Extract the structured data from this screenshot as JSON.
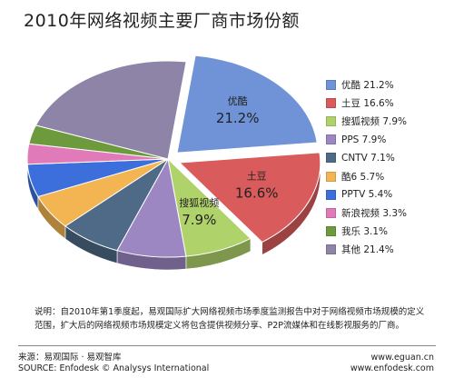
{
  "chart_data": {
    "type": "pie",
    "title": "2010年网络视频主要厂商市场份额",
    "unit": "%",
    "categories": [
      "优酷",
      "土豆",
      "搜狐视频",
      "PPS",
      "CNTV",
      "酷6",
      "PPTV",
      "新浪视频",
      "我乐",
      "其他"
    ],
    "values": [
      21.2,
      16.6,
      7.9,
      7.9,
      7.1,
      5.7,
      5.4,
      3.3,
      3.1,
      21.4
    ],
    "legend_labels": [
      "优酷 21.2%",
      "土豆 16.6%",
      "搜狐视频 7.9%",
      "PPS 7.9%",
      "CNTV 7.1%",
      "酷6 5.7%",
      "PPTV 5.4%",
      "新浪视频 3.3%",
      "我乐 3.1%",
      "其他 21.4%"
    ],
    "colors": [
      "#6f93d6",
      "#d95b5b",
      "#b0d26b",
      "#9c87c2",
      "#4e6a86",
      "#f2b552",
      "#3d6fdc",
      "#e07ab8",
      "#6d9a3c",
      "#8e84a8"
    ],
    "annotations": [
      {
        "name": "优酷",
        "value": "21.2%"
      },
      {
        "name": "土豆",
        "value": "16.6%"
      },
      {
        "name": "搜狐视频",
        "value": "7.9%"
      }
    ],
    "legend_position": "right"
  },
  "note": "说明：自2010年第1季度起，易观国际扩大网络视频市场季度监测报告中对于网络视频市场规模的定义范围，扩大后的网络视频市场规模定义将包含提供视频分享、P2P流媒体和在线影视服务的厂商。",
  "source_cn": "来源：易观国际 · 易观智库",
  "source_en": "SOURCE: Enfodesk © Analysys International",
  "url1": "www.eguan.cn",
  "url2": "www.enfodesk.com"
}
